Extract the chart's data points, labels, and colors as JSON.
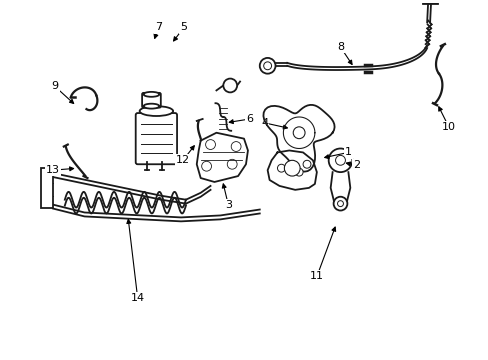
{
  "background_color": "#ffffff",
  "line_color": "#1a1a1a",
  "label_color": "#000000",
  "figsize": [
    4.89,
    3.6
  ],
  "dpi": 100
}
